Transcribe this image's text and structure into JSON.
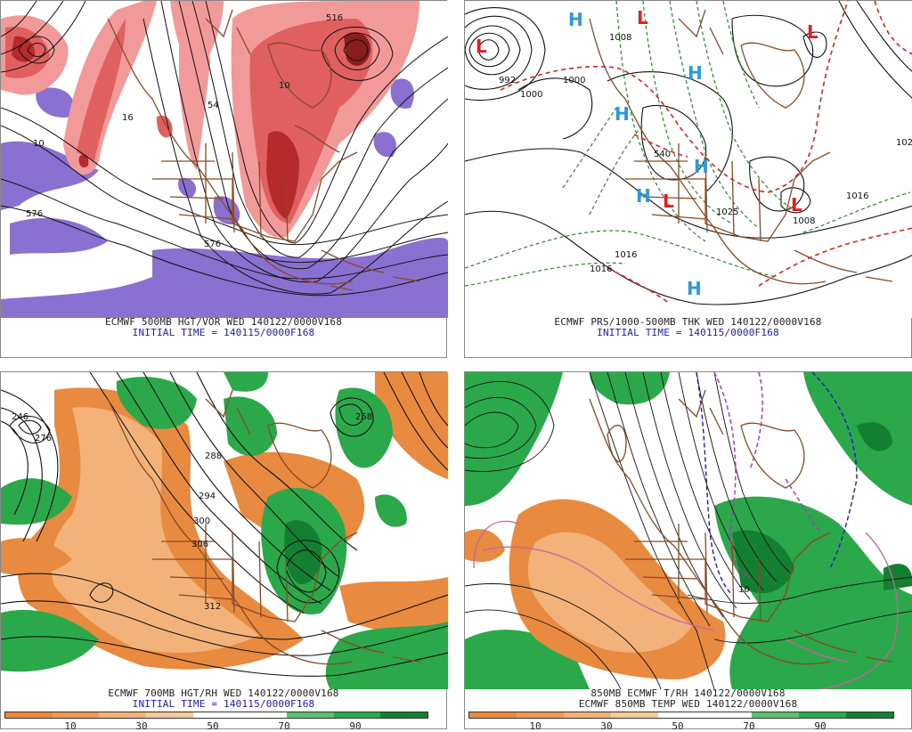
{
  "colors": {
    "vort_light": "#f29a9a",
    "vort_mid": "#e06060",
    "vort_dark": "#b52a2a",
    "vort_neg": "#8a70d0",
    "coast": "#8a4a24",
    "rh_dry": "#e88a40",
    "rh_dry_light": "#f2b27a",
    "rh_moist": "#2aa84a",
    "rh_moist_dark": "#128030",
    "high_marker": "#2a9ad8",
    "low_marker": "#e02020",
    "thk_red": "#e02020",
    "thk_green": "#2a8a2a"
  },
  "panels": {
    "tl": {
      "caption_line1": "ECMWF 500MB HGT/VOR WED 140122/0000V168",
      "caption_line2": "INITIAL TIME = 140115/0000F168",
      "contour_labels": [
        "516",
        "54",
        "576",
        "576",
        "10",
        "16",
        "10"
      ]
    },
    "tr": {
      "caption_line1": "ECMWF PRS/1000-500MB THK WED 140122/0000V168",
      "caption_line2": "INITIAL TIME = 140115/0000F168",
      "high_letter": "H",
      "low_letter": "L",
      "contour_labels": [
        "1008",
        "1000",
        "992",
        "1016",
        "1016",
        "1008",
        "1025",
        "1016",
        "540",
        "102",
        "1000"
      ]
    },
    "bl": {
      "caption_line1": "ECMWF 700MB HGT/RH WED 140122/0000V168",
      "caption_line2": "INITIAL TIME = 140115/0000F168",
      "contour_labels": [
        "246",
        "276",
        "288",
        "294",
        "300",
        "306",
        "312",
        "258"
      ],
      "colorbar_ticks": [
        "10",
        "30",
        "50",
        "70",
        "90"
      ]
    },
    "br": {
      "caption_line1": "850MB ECMWF T/RH 140122/0000V168",
      "caption_line2": "ECMWF 850MB TEMP WED 140122/0000V168",
      "contour_labels": [
        "10"
      ],
      "colorbar_ticks": [
        "10",
        "30",
        "50",
        "70",
        "90"
      ]
    }
  }
}
